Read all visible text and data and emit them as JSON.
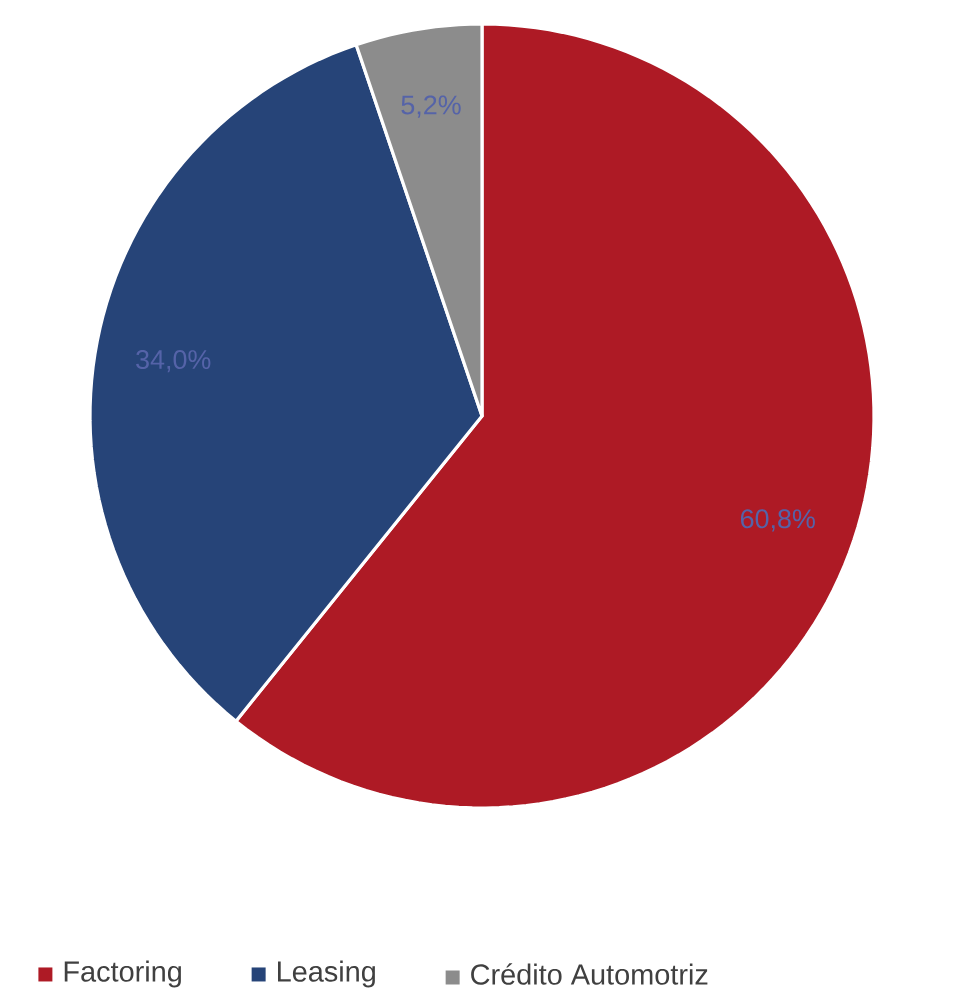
{
  "chart_data": {
    "type": "pie",
    "categories": [
      "Factoring",
      "Leasing",
      "Crédito Automotriz"
    ],
    "values": [
      60.8,
      34.0,
      5.2
    ],
    "colors": [
      "#ae1a25",
      "#264478",
      "#8c8c8c"
    ],
    "value_labels": [
      "60,8%",
      "34,0%",
      "5,2%"
    ],
    "legend": "bottom"
  }
}
